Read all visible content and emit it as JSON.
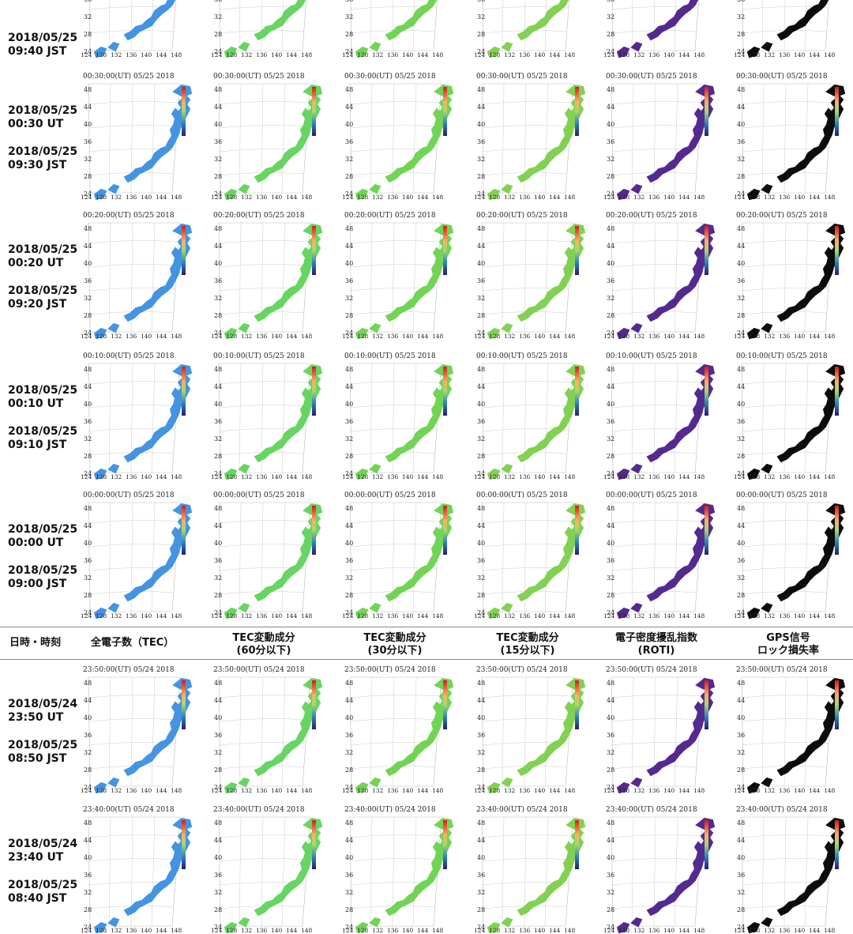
{
  "header": {
    "datetime": "日時・時刻",
    "tec": "全電子数（TEC）",
    "tec60": [
      "TEC変動成分",
      "(60分以下)"
    ],
    "tec30": [
      "TEC変動成分",
      "(30分以下)"
    ],
    "tec15": [
      "TEC変動成分",
      "(15分以下)"
    ],
    "roti": [
      "電子密度擾乱指数",
      "(ROTI)"
    ],
    "lol": [
      "GPS信号",
      "ロック損失率"
    ]
  },
  "rows": [
    {
      "ut": "",
      "jst_date": "2018/05/25",
      "jst": "09:40 JST",
      "title": ""
    },
    {
      "ut_date": "2018/05/25",
      "ut": "00:30 UT",
      "jst_date": "2018/05/25",
      "jst": "09:30 JST",
      "title": "00:30:00(UT)  05/25 2018"
    },
    {
      "ut_date": "2018/05/25",
      "ut": "00:20 UT",
      "jst_date": "2018/05/25",
      "jst": "09:20 JST",
      "title": "00:20:00(UT)  05/25 2018"
    },
    {
      "ut_date": "2018/05/25",
      "ut": "00:10 UT",
      "jst_date": "2018/05/25",
      "jst": "09:10 JST",
      "title": "00:10:00(UT)  05/25 2018"
    },
    {
      "ut_date": "2018/05/25",
      "ut": "00:00 UT",
      "jst_date": "2018/05/25",
      "jst": "09:00 JST",
      "title": "00:00:00(UT)  05/25 2018"
    },
    {
      "ut_date": "2018/05/24",
      "ut": "23:50 UT",
      "jst_date": "2018/05/25",
      "jst": "08:50 JST",
      "title": "23:50:00(UT)  05/24 2018"
    },
    {
      "ut_date": "2018/05/24",
      "ut": "23:40 UT",
      "jst_date": "2018/05/25",
      "jst": "08:40 JST",
      "title": "23:40:00(UT)  05/24 2018"
    }
  ],
  "lat_ticks": [
    "48",
    "44",
    "40",
    "36",
    "32",
    "28",
    "24"
  ],
  "lon_ticks": [
    "124",
    "128",
    "132",
    "136",
    "140",
    "144",
    "148"
  ],
  "colors": {
    "tec": "#3b8fe0",
    "tec60": "#5fd35a",
    "tec30": "#6ad24c",
    "tec15": "#7ccf4a",
    "roti": "#4b1f8a",
    "lol": "#000000"
  }
}
